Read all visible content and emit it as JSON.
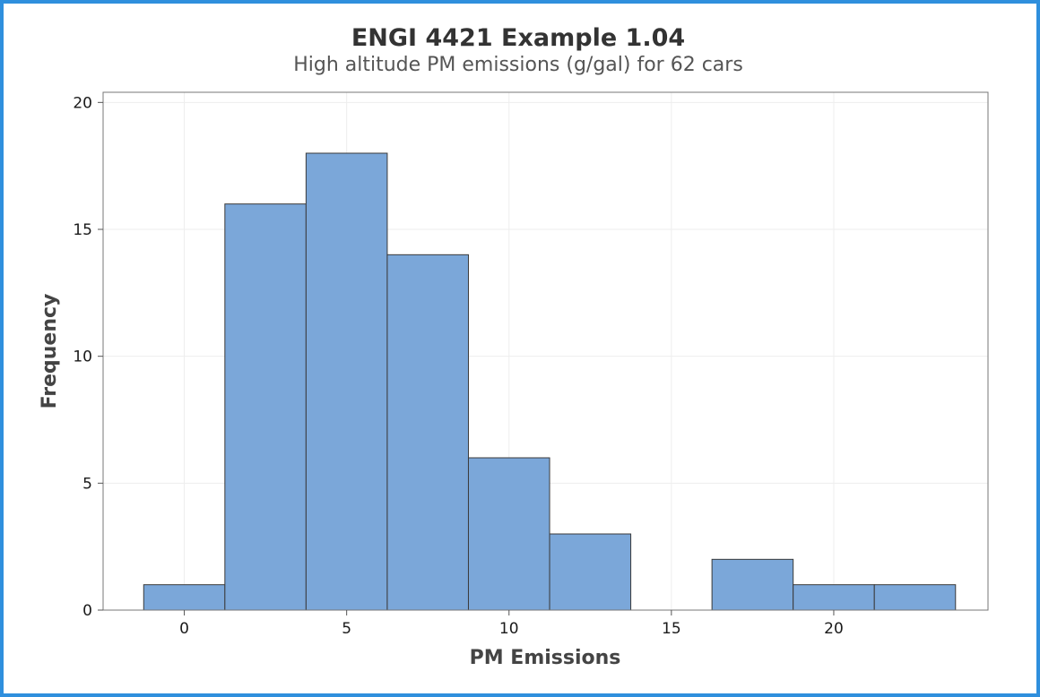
{
  "chart_data": {
    "type": "bar",
    "title": "ENGI 4421 Example 1.04",
    "subtitle": "High altitude PM emissions (g/gal) for 62 cars",
    "xlabel": "PM Emissions",
    "ylabel": "Frequency",
    "bin_width": 2.5,
    "bin_midpoints": [
      0,
      2.5,
      5,
      7.5,
      10,
      12.5,
      15,
      17.5,
      20,
      22.5
    ],
    "values": [
      1,
      16,
      18,
      14,
      6,
      3,
      0,
      2,
      1,
      1
    ],
    "xlim": [
      -2.5,
      24.75
    ],
    "ylim": [
      0,
      20.4
    ],
    "xticks": [
      0,
      5,
      10,
      15,
      20
    ],
    "yticks": [
      0,
      5,
      10,
      15,
      20
    ],
    "grid": true,
    "legend": "none",
    "colors": {
      "bar_fill": "#7ba7d9",
      "bar_edge": "#3a3a3a",
      "grid": "#eeeeee",
      "frame_border": "#2f8fdd"
    }
  }
}
